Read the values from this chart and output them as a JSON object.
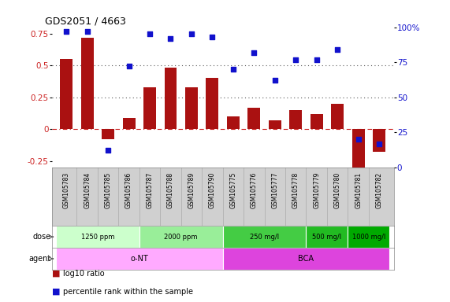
{
  "title": "GDS2051 / 4663",
  "samples": [
    "GSM105783",
    "GSM105784",
    "GSM105785",
    "GSM105786",
    "GSM105787",
    "GSM105788",
    "GSM105789",
    "GSM105790",
    "GSM105775",
    "GSM105776",
    "GSM105777",
    "GSM105778",
    "GSM105779",
    "GSM105780",
    "GSM105781",
    "GSM105782"
  ],
  "log10_ratio": [
    0.55,
    0.72,
    -0.08,
    0.09,
    0.33,
    0.48,
    0.33,
    0.4,
    0.1,
    0.17,
    0.07,
    0.15,
    0.12,
    0.2,
    -0.3,
    -0.18
  ],
  "percentile_rank": [
    97,
    97,
    12,
    72,
    95,
    92,
    95,
    93,
    70,
    82,
    62,
    77,
    77,
    84,
    20,
    17
  ],
  "bar_color": "#aa1111",
  "dot_color": "#1111cc",
  "ylim_left": [
    -0.3,
    0.8
  ],
  "ylim_right": [
    0,
    133.33
  ],
  "yticks_left": [
    -0.25,
    0,
    0.25,
    0.5,
    0.75
  ],
  "ytick_labels_left": [
    "-0.25",
    "0",
    "0.25",
    "0.5",
    "0.75"
  ],
  "yticks_right": [
    0,
    33.33,
    66.67,
    100,
    133.33
  ],
  "ytick_labels_right": [
    "0",
    "25",
    "50",
    "75",
    "100%"
  ],
  "hline_y": [
    0,
    0.25,
    0.5
  ],
  "hline_styles": [
    "dashdot",
    "dotted",
    "dotted"
  ],
  "hline_colors": [
    "#cc2222",
    "#555555",
    "#555555"
  ],
  "dose_groups": [
    {
      "label": "1250 ppm",
      "start": 0,
      "end": 4,
      "color": "#ccffcc"
    },
    {
      "label": "2000 ppm",
      "start": 4,
      "end": 8,
      "color": "#99ee99"
    },
    {
      "label": "250 mg/l",
      "start": 8,
      "end": 12,
      "color": "#44cc44"
    },
    {
      "label": "500 mg/l",
      "start": 12,
      "end": 14,
      "color": "#22bb22"
    },
    {
      "label": "1000 mg/l",
      "start": 14,
      "end": 16,
      "color": "#00aa00"
    }
  ],
  "agent_groups": [
    {
      "label": "o-NT",
      "start": 0,
      "end": 8,
      "color": "#ffaaff"
    },
    {
      "label": "BCA",
      "start": 8,
      "end": 16,
      "color": "#dd44dd"
    }
  ],
  "bg_color": "#ffffff",
  "sample_bg": "#d0d0d0",
  "ylabel_left_color": "#cc2222",
  "ylabel_right_color": "#1111cc"
}
